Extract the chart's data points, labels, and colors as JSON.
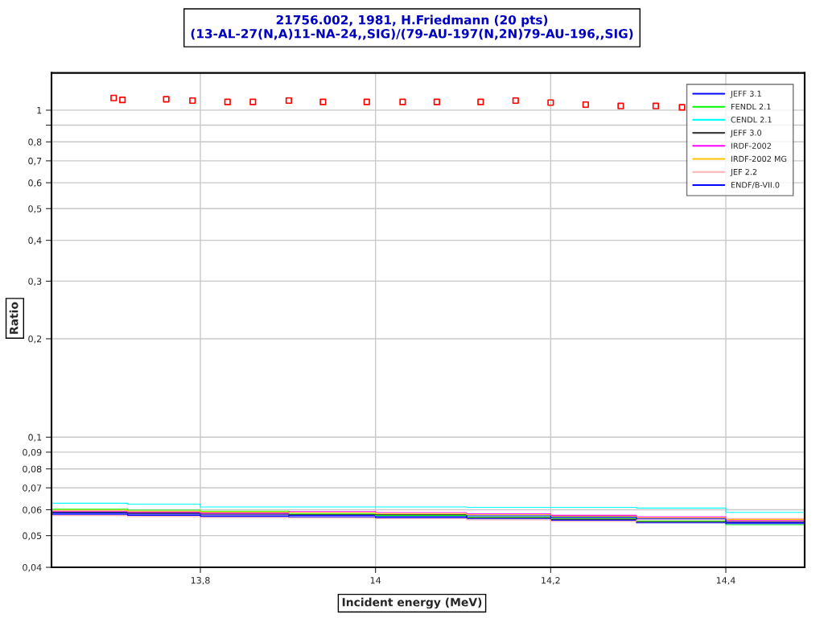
{
  "chart_data": {
    "type": "step",
    "title": "21756.002, 1981, H.Friedmann (20 pts)\n(13-AL-27(N,A)11-NA-24,,SIG)/(79-AU-197(N,2N)79-AU-196,,SIG)",
    "xlabel": "Incident energy (MeV)",
    "ylabel": "Ratio",
    "log": "y",
    "grid": true,
    "legend": "top right",
    "line_style": "solid",
    "xlim": [
      13.63,
      14.49
    ],
    "ylim": [
      0.04,
      1.3
    ],
    "xticks": [
      {
        "value": 13.8,
        "label": "13,8"
      },
      14,
      {
        "value": 14.2,
        "label": "14,2"
      },
      {
        "value": 14.4,
        "label": "14,4"
      }
    ],
    "yticks": [
      {
        "value": 0.04,
        "label": "0,04"
      },
      {
        "value": 0.05,
        "label": "0,05"
      },
      {
        "value": 0.06,
        "label": "0,06"
      },
      {
        "value": 0.07,
        "label": "0,07"
      },
      {
        "value": 0.08,
        "label": "0,08"
      },
      {
        "value": 0.09,
        "label": "0,09"
      },
      {
        "value": 0.1,
        "label": "0,1"
      },
      {
        "value": 0.2,
        "label": "0,2"
      },
      {
        "value": 0.3,
        "label": "0,3"
      },
      {
        "value": 0.4,
        "label": "0,4"
      },
      {
        "value": 0.5,
        "label": "0,5"
      },
      {
        "value": 0.6,
        "label": "0,6"
      },
      {
        "value": 0.7,
        "label": "0,7"
      },
      {
        "value": 0.8,
        "label": "0,8"
      },
      {
        "value": 0.9,
        "label": null
      },
      1
    ],
    "x": [
      13.63,
      13.717,
      13.8,
      13.901,
      14.0,
      14.104,
      14.2,
      14.298,
      14.4,
      14.49
    ],
    "series": [
      {
        "name": "JEFF 3.1",
        "color": "#0000ff",
        "values": [
          0.0586,
          0.0582,
          0.0578,
          0.0576,
          0.0572,
          0.0563,
          0.0557,
          0.0547,
          0.0548,
          0.0548
        ]
      },
      {
        "name": "FENDL 2.1",
        "color": "#00ff00",
        "values": [
          0.0602,
          0.0598,
          0.0594,
          0.0584,
          0.0576,
          0.0571,
          0.0565,
          0.0555,
          0.054,
          0.054
        ]
      },
      {
        "name": "CENDL 2.1",
        "color": "#00ffff",
        "values": [
          0.0628,
          0.0624,
          0.0612,
          0.0612,
          0.0612,
          0.061,
          0.061,
          0.0607,
          0.0589,
          0.0589
        ]
      },
      {
        "name": "JEFF 3.0",
        "color": "#404040",
        "values": [
          0.059,
          0.0586,
          0.0582,
          0.058,
          0.058,
          0.0567,
          0.0561,
          0.0551,
          0.0552,
          0.0552
        ]
      },
      {
        "name": "IRDF-2002",
        "color": "#ff00ff",
        "values": [
          0.0594,
          0.059,
          0.0586,
          0.0592,
          0.0588,
          0.0583,
          0.0577,
          0.0571,
          0.0556,
          0.0556
        ]
      },
      {
        "name": "IRDF-2002 MG",
        "color": "#ffc000",
        "values": [
          0.0598,
          0.0594,
          0.059,
          0.0588,
          0.0584,
          0.0579,
          0.0573,
          0.0567,
          0.056,
          0.056
        ]
      },
      {
        "name": "JEF 2.2",
        "color": "#ffb0b0",
        "values": [
          0.0576,
          0.0572,
          0.0568,
          0.0566,
          0.0564,
          0.0559,
          0.0553,
          0.0559,
          0.0564,
          0.0564
        ]
      },
      {
        "name": "ENDF/B-VII.0",
        "color": "#0000ff",
        "values": [
          0.0581,
          0.0577,
          0.0573,
          0.0571,
          0.0568,
          0.0575,
          0.0569,
          0.0563,
          0.0544,
          0.0544
        ]
      },
      {
        "type": "scatter",
        "marker": "square",
        "color": "#ff0000",
        "x": [
          13.701,
          13.711,
          13.761,
          13.791,
          13.831,
          13.86,
          13.901,
          13.94,
          13.99,
          14.031,
          14.07,
          14.12,
          14.16,
          14.2,
          14.24,
          14.28,
          14.32,
          14.35
        ],
        "values": [
          1.09,
          1.075,
          1.08,
          1.07,
          1.06,
          1.06,
          1.07,
          1.06,
          1.06,
          1.06,
          1.06,
          1.06,
          1.07,
          1.055,
          1.04,
          1.03,
          1.03,
          1.02
        ]
      }
    ]
  }
}
